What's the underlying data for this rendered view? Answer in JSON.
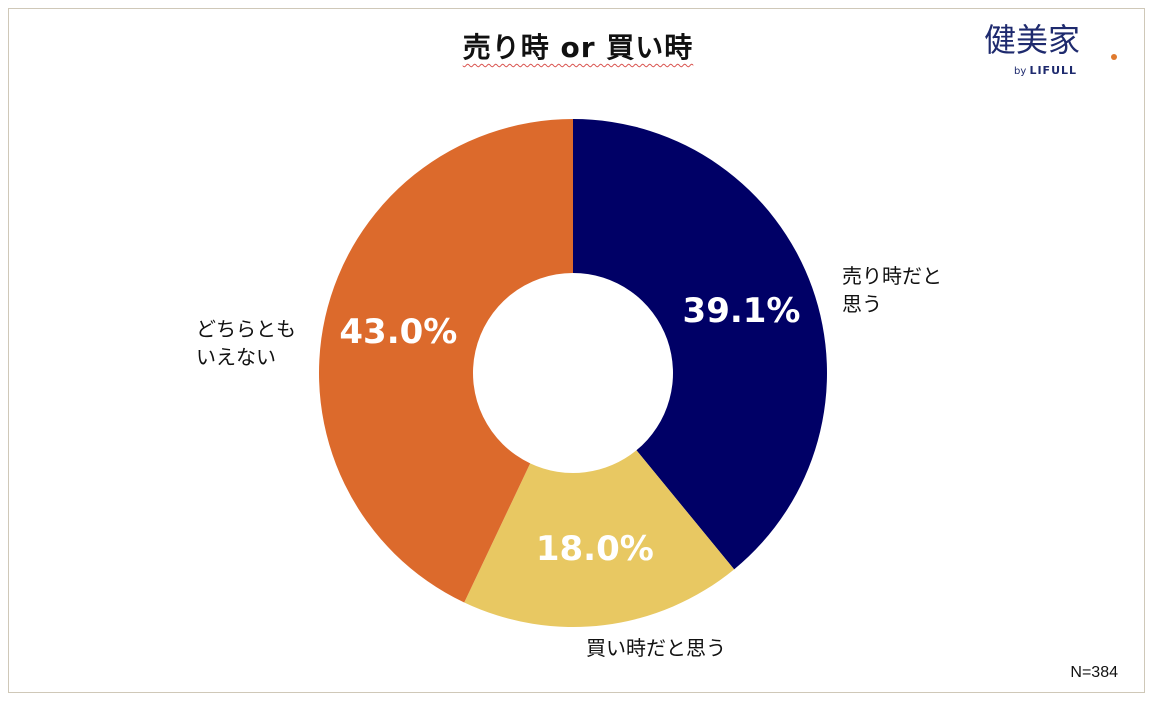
{
  "chart_data": {
    "type": "pie",
    "title": "売り時 or 買い時",
    "donut": true,
    "categories": [
      "売り時だと思う",
      "買い時だと思う",
      "どちらともいえない"
    ],
    "display_labels": [
      [
        "売り時だと",
        "思う"
      ],
      [
        "買い時だと思う"
      ],
      [
        "どちらとも",
        "いえない"
      ]
    ],
    "values": [
      39.1,
      18.0,
      43.0
    ],
    "value_labels": [
      "39.1%",
      "18.0%",
      "43.0%"
    ],
    "colors": [
      "#000066",
      "#e8c862",
      "#dc6a2c"
    ],
    "note": "N=384"
  },
  "logo": {
    "main": "健美家",
    "by": "by",
    "brand": "LIFULL"
  }
}
